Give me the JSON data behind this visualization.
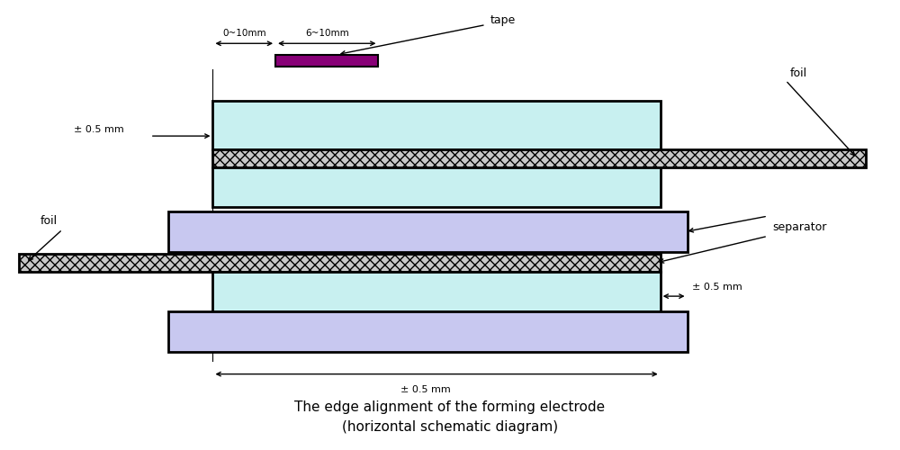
{
  "title_line1": "The edge alignment of the forming electrode",
  "title_line2": "(horizontal schematic diagram)",
  "bg_color": "#ffffff",
  "cyan_color": "#c8f0f0",
  "purple_color": "#c8c8f0",
  "hatch_bg": "#c8c8c8",
  "black": "#000000",
  "tape_color": "#880077",
  "fig_width": 10.0,
  "fig_height": 5.0,
  "tape_note": "tape",
  "foil_note_top": "foil",
  "foil_note_bottom": "foil",
  "separator_note": "separator",
  "dim_0_10": "0~10mm",
  "dim_6_10": "6~10mm",
  "pm05_mm": "± 0.5 mm"
}
